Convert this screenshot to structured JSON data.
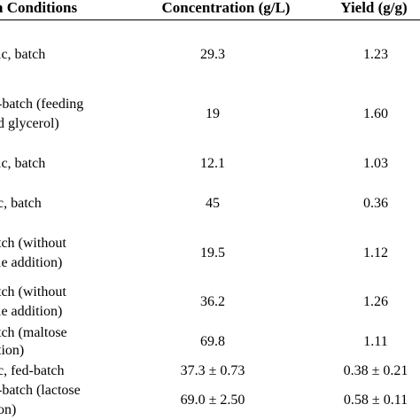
{
  "table": {
    "headers": {
      "conditions": "n Conditions",
      "concentration": "Concentration (g/L)",
      "yield": "Yield (g/g)"
    },
    "rows": [
      {
        "conditions": [
          "ic, batch"
        ],
        "concentration": "29.3",
        "yield": "1.23"
      },
      {
        "conditions": [
          "-batch (feeding",
          "d glycerol)"
        ],
        "concentration": "19",
        "yield": "1.60"
      },
      {
        "conditions": [
          "ic, batch"
        ],
        "concentration": "12.1",
        "yield": "1.03"
      },
      {
        "conditions": [
          "c, batch"
        ],
        "concentration": "45",
        "yield": "0.36"
      },
      {
        "conditions": [
          "tch (without",
          "le addition)"
        ],
        "concentration": "19.5",
        "yield": "1.12"
      },
      {
        "conditions": [
          "tch (without",
          "le addition)"
        ],
        "concentration": "36.2",
        "yield": "1.26"
      },
      {
        "conditions": [
          "tion)"
        ],
        "concentration": "69.8",
        "yield": "1.11"
      },
      {
        "conditions": [
          "c, fed-batch"
        ],
        "concentration": "37.3 ± 0.73",
        "yield": "0.38 ± 0.21"
      },
      {
        "conditions": [
          "-batch (lactose",
          "on)"
        ],
        "concentration": "69.0 ± 2.50",
        "yield": "0.58 ± 0.11"
      }
    ],
    "row7_prefix": "tch (maltose"
  }
}
